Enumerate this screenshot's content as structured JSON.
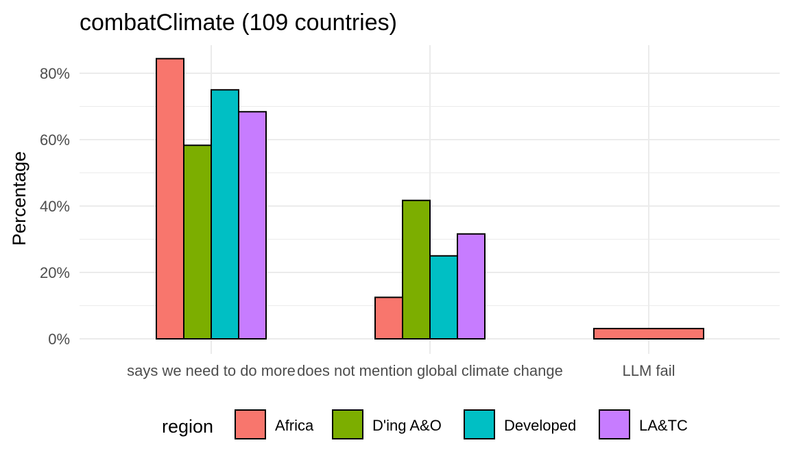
{
  "chart_data": {
    "type": "bar",
    "title": "combatClimate (109 countries)",
    "xlabel": "",
    "ylabel": "Percentage",
    "categories": [
      "says we need to do more",
      "does not mention global climate change",
      "LLM fail"
    ],
    "series": [
      {
        "name": "Africa",
        "color": "#F8766D",
        "values": [
          0.844,
          0.125,
          0.031
        ]
      },
      {
        "name": "D'ing A&O",
        "color": "#7CAE00",
        "values": [
          0.583,
          0.417,
          0
        ]
      },
      {
        "name": "Developed",
        "color": "#00BFC4",
        "values": [
          0.75,
          0.25,
          0
        ]
      },
      {
        "name": "LA&TC",
        "color": "#C77CFF",
        "values": [
          0.684,
          0.316,
          0
        ]
      }
    ],
    "ylim": [
      0,
      0.88
    ],
    "yticks": [
      0,
      0.2,
      0.4,
      0.6,
      0.8
    ],
    "ytick_labels": [
      "0%",
      "20%",
      "40%",
      "60%",
      "80%"
    ],
    "grid": true,
    "legend": {
      "title": "region",
      "position": "bottom"
    }
  }
}
